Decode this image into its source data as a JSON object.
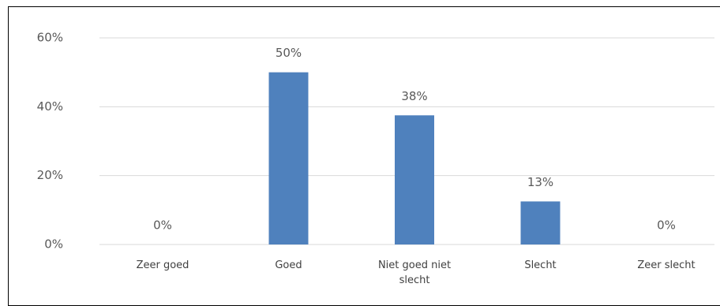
{
  "chart_data": {
    "type": "bar",
    "categories": [
      "Zeer goed",
      "Goed",
      "Niet goed niet slecht",
      "Slecht",
      "Zeer slecht"
    ],
    "values": [
      0,
      50,
      37.5,
      12.5,
      0
    ],
    "value_labels": [
      "0%",
      "50%",
      "38%",
      "13%",
      "0%"
    ],
    "color": "#4f81bd",
    "ylim": [
      0,
      60
    ],
    "yticks": [
      {
        "value": 0,
        "label": "0%"
      },
      {
        "value": 20,
        "label": "20%"
      },
      {
        "value": 40,
        "label": "40%"
      },
      {
        "value": 60,
        "label": "60%"
      }
    ],
    "grid": true
  }
}
